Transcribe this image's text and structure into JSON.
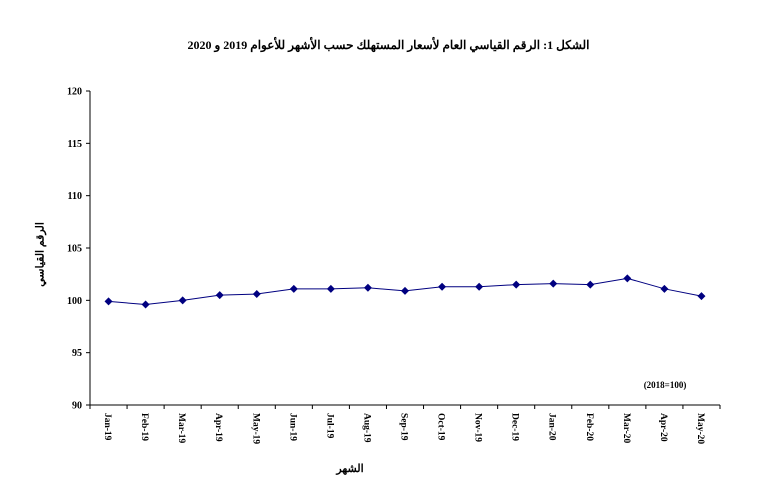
{
  "chart_data": {
    "type": "line",
    "title": "الشكل 1: الرقم القياسي العام لأسعار المستهلك حسب الأشهر للأعوام 2019 و 2020",
    "xlabel": "الشهر",
    "ylabel": "الرقم القياسي",
    "note": "(2018=100)",
    "ylim": [
      90,
      120
    ],
    "yticks": [
      90,
      95,
      100,
      105,
      110,
      115,
      120
    ],
    "categories": [
      "Jan-19",
      "Feb-19",
      "Mar-19",
      "Apr-19",
      "May-19",
      "Jun-19",
      "Jul-19",
      "Aug-19",
      "Sep-19",
      "Oct-19",
      "Nov-19",
      "Dec-19",
      "Jan-20",
      "Feb-20",
      "Mar-20",
      "Apr-20",
      "May-20"
    ],
    "category_labels": [
      "Jan-19",
      "Feb-19",
      "Mar-19",
      "Apr-19",
      "May-19",
      "Jun-19",
      "Jul-19",
      "Aug-19",
      "Sep-19",
      "Oct-19",
      "Nov-19",
      "Dec-19",
      "Jan-20",
      "Feb-20",
      "Mar-20",
      "Apr-20",
      "May-20"
    ],
    "series": [
      {
        "color": "#000080",
        "values": [
          99.9,
          99.6,
          100.0,
          100.5,
          100.6,
          101.1,
          101.1,
          101.2,
          100.9,
          101.3,
          101.3,
          101.5,
          101.6,
          101.5,
          102.1,
          101.1,
          100.4
        ]
      }
    ],
    "grid": false,
    "legend": "none"
  }
}
